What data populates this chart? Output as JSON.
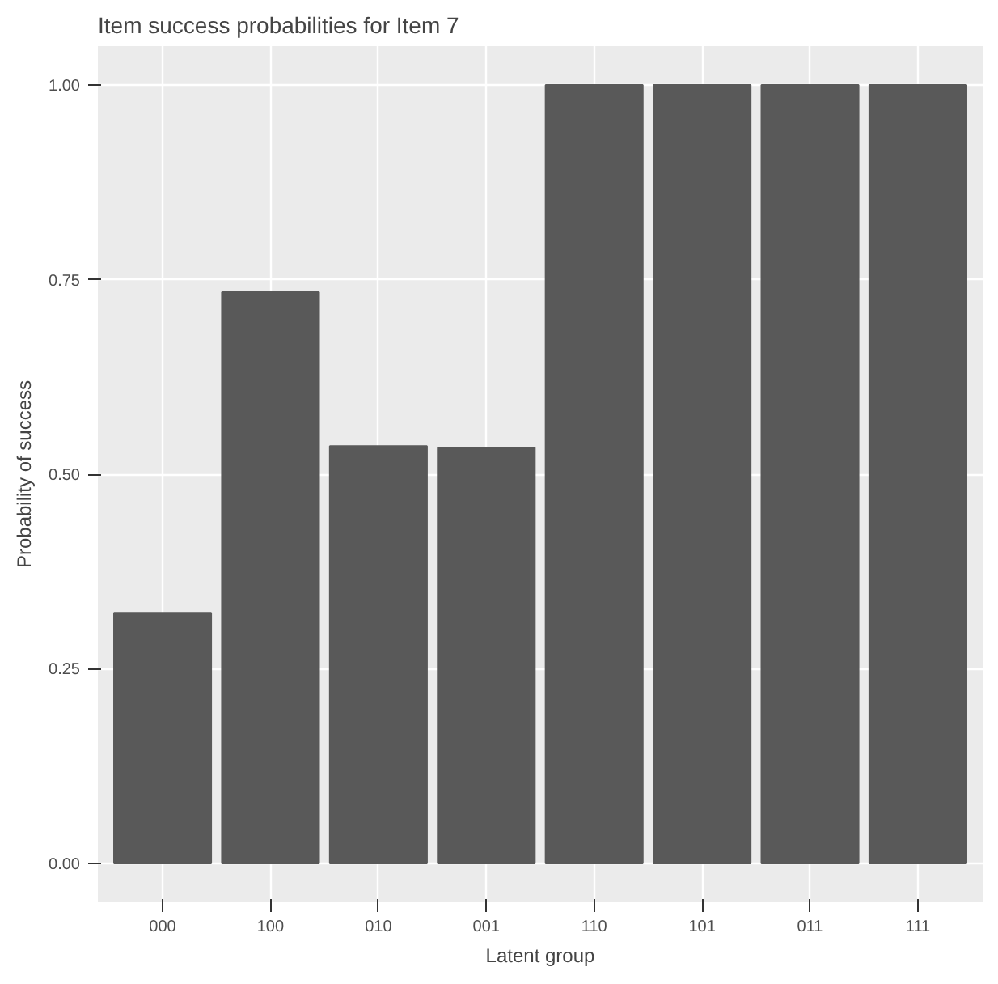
{
  "chart_data": {
    "type": "bar",
    "title": "Item success probabilities for Item 7",
    "xlabel": "Latent group",
    "ylabel": "Probability of success",
    "categories": [
      "000",
      "100",
      "010",
      "001",
      "110",
      "101",
      "011",
      "111"
    ],
    "values": [
      0.322,
      0.734,
      0.536,
      0.534,
      1.0,
      1.0,
      1.0,
      1.0
    ],
    "color": "#595959",
    "ylim": [
      -0.05,
      1.05
    ],
    "yticks": [
      {
        "value": 0,
        "label": "0.00"
      },
      {
        "value": 0.25,
        "label": "0.25"
      },
      {
        "value": 0.5,
        "label": "0.50"
      },
      {
        "value": 0.75,
        "label": "0.75"
      },
      {
        "value": 1,
        "label": "1.00"
      }
    ],
    "grid": true
  }
}
